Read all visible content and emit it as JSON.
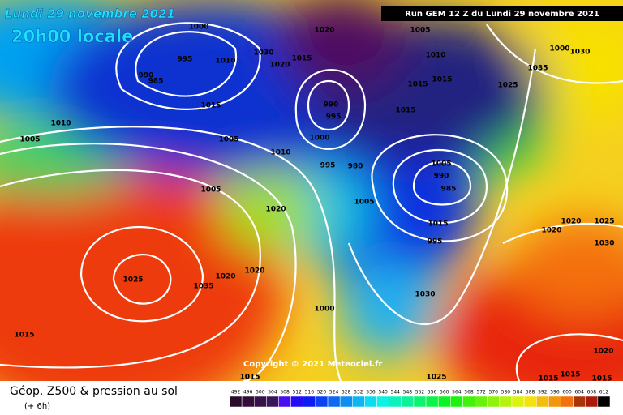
{
  "header": {
    "date": "Lundi 29 novembre 2021",
    "time": "20h00 locale",
    "run": "Run GEM 12 Z du Lundi 29 novembre 2021"
  },
  "footer": {
    "title": "Géop. Z500 & pression au sol",
    "lead": "(+ 6h)",
    "copyright": "Copyright © 2021 Meteociel.fr"
  },
  "scale": {
    "labels": [
      492,
      496,
      500,
      504,
      508,
      512,
      516,
      520,
      524,
      528,
      532,
      536,
      540,
      544,
      548,
      552,
      556,
      560,
      564,
      568,
      572,
      576,
      580,
      584,
      588,
      592,
      596,
      600,
      604,
      608,
      612
    ]
  },
  "isobar_labels": [
    "1000",
    "995",
    "990",
    "985",
    "1010",
    "1030",
    "1020",
    "1015",
    "1020",
    "1005",
    "1010",
    "1015",
    "1015",
    "1015",
    "990",
    "995",
    "1015",
    "1010",
    "1005",
    "1005",
    "1000",
    "1010",
    "995",
    "1005",
    "990",
    "985",
    "980",
    "1005",
    "1005",
    "1020",
    "1015",
    "995",
    "1000",
    "1030",
    "1035",
    "1025",
    "1020",
    "1020",
    "1025",
    "1030",
    "1020",
    "1020",
    "1025",
    "1035",
    "1030",
    "1000",
    "1015",
    "1020",
    "1015",
    "1015",
    "1015",
    "1015",
    "1025",
    "1020"
  ]
}
